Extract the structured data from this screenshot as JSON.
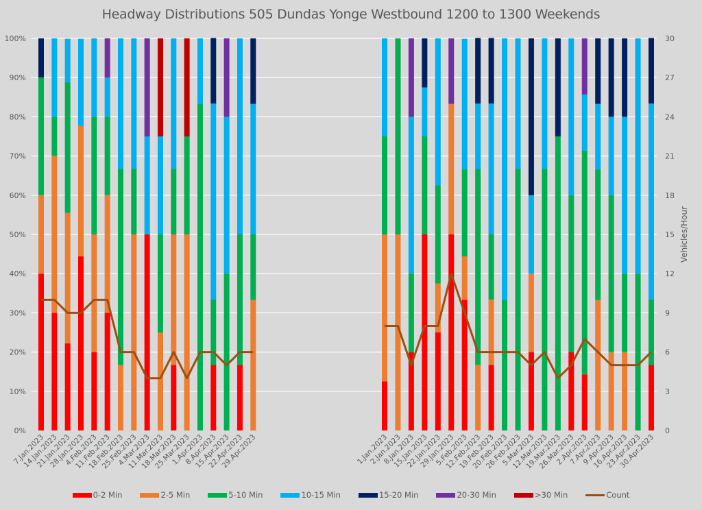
{
  "chart_data": {
    "type": "bar",
    "subtype": "stacked-percent-with-line",
    "title": "Headway Distributions 505 Dundas  Yonge Westbound 1200 to 1300 Weekends",
    "ylabel_left": "",
    "ylabel_right": "Vehicles/Hour",
    "ylim_left": [
      0,
      100
    ],
    "ylim_right": [
      0,
      30
    ],
    "yticks_left": [
      "0%",
      "10%",
      "20%",
      "30%",
      "40%",
      "50%",
      "60%",
      "70%",
      "80%",
      "90%",
      "100%"
    ],
    "yticks_right": [
      "0",
      "3",
      "6",
      "9",
      "12",
      "15",
      "18",
      "21",
      "24",
      "27",
      "30"
    ],
    "grid": true,
    "legend_position": "bottom",
    "series_names": [
      "0-2 Min",
      "2-5 Min",
      "5-10 Min",
      "10-15 Min",
      "15-20 Min",
      "20-30 Min",
      ">30 Min"
    ],
    "series_colors": [
      "#ff0000",
      "#ed7d31",
      "#00b050",
      "#00b0f0",
      "#002060",
      "#7030a0",
      "#c00000"
    ],
    "line_series": {
      "name": "Count",
      "color": "#9c4f12"
    },
    "groups": [
      {
        "name": "left",
        "categories": [
          "7.Jan.2023",
          "14.Jan.2023",
          "21.Jan.2023",
          "28.Jan.2023",
          "4.Feb.2023",
          "11.Feb.2023",
          "18.Feb.2023",
          "25.Feb.2023",
          "4.Mar.2023",
          "11.Mar.2023",
          "18.Mar.2023",
          "25.Mar.2023",
          "1.Apr.2023",
          "8.Apr.2023",
          "15.Apr.2023",
          "22.Apr.2023",
          "29.Apr.2023"
        ],
        "percent": [
          [
            40,
            20,
            30,
            0,
            10,
            0,
            0
          ],
          [
            30,
            40,
            10,
            20,
            0,
            0,
            0
          ],
          [
            22.2,
            33.3,
            33.3,
            11.1,
            0,
            0,
            0
          ],
          [
            44.4,
            33.3,
            0,
            22.2,
            0,
            0,
            0
          ],
          [
            20,
            30,
            30,
            20,
            0,
            0,
            0
          ],
          [
            30,
            30,
            20,
            10,
            0,
            10,
            0
          ],
          [
            0,
            16.7,
            50,
            33.3,
            0,
            0,
            0
          ],
          [
            0,
            50,
            16.7,
            33.3,
            0,
            0,
            0
          ],
          [
            50,
            0,
            0,
            25,
            0,
            25,
            0
          ],
          [
            0,
            25,
            25,
            25,
            0,
            0,
            25
          ],
          [
            16.7,
            33.3,
            16.7,
            33.3,
            0,
            0,
            0
          ],
          [
            0,
            50,
            25,
            0,
            0,
            0,
            25
          ],
          [
            0,
            0,
            83.3,
            16.7,
            0,
            0,
            0
          ],
          [
            16.7,
            0,
            16.7,
            50,
            16.7,
            0,
            0
          ],
          [
            0,
            0,
            40,
            40,
            0,
            20,
            0
          ],
          [
            16.7,
            0,
            33.3,
            50,
            0,
            0,
            0
          ],
          [
            0,
            33.3,
            16.7,
            33.3,
            16.7,
            0,
            0
          ]
        ],
        "count": [
          10,
          10,
          9,
          9,
          10,
          10,
          6,
          6,
          4,
          4,
          6,
          4,
          6,
          6,
          5,
          6,
          6
        ]
      },
      {
        "name": "right",
        "categories": [
          "1.Jan.2023",
          "2.Jan.2023",
          "8.Jan.2023",
          "15.Jan.2023",
          "22.Jan.2023",
          "29.Jan.2023",
          "5.Feb.2023",
          "12.Feb.2023",
          "19.Feb.2023",
          "20.Feb.2023",
          "26.Feb.2023",
          "5.Mar.2023",
          "12.Mar.2023",
          "19.Mar.2023",
          "26.Mar.2023",
          "2.Apr.2023",
          "7.Apr.2023",
          "9.Apr.2023",
          "16.Apr.2023",
          "23.Apr.2023",
          "30.Apr.2023"
        ],
        "percent": [
          [
            12.5,
            37.5,
            25,
            25,
            0,
            0,
            0
          ],
          [
            0,
            50,
            50,
            0,
            0,
            0,
            0
          ],
          [
            20,
            0,
            20,
            40,
            0,
            20,
            0
          ],
          [
            50,
            0,
            25,
            12.5,
            12.5,
            0,
            0
          ],
          [
            25,
            12.5,
            25,
            37.5,
            0,
            0,
            0
          ],
          [
            50,
            33.3,
            0,
            0,
            0,
            16.7,
            0
          ],
          [
            33.3,
            11.1,
            22.2,
            33.3,
            0,
            0,
            0
          ],
          [
            0,
            16.7,
            50,
            16.7,
            16.7,
            0,
            0
          ],
          [
            16.7,
            16.7,
            16.7,
            33.3,
            16.7,
            0,
            0
          ],
          [
            0,
            0,
            33.3,
            66.7,
            0,
            0,
            0
          ],
          [
            0,
            0,
            66.7,
            33.3,
            0,
            0,
            0
          ],
          [
            20,
            20,
            0,
            20,
            40,
            0,
            0
          ],
          [
            0,
            0,
            66.7,
            33.3,
            0,
            0,
            0
          ],
          [
            0,
            0,
            75,
            0,
            25,
            0,
            0
          ],
          [
            20,
            0,
            40,
            40,
            0,
            0,
            0
          ],
          [
            14.3,
            0,
            57.1,
            14.3,
            0,
            14.3,
            0
          ],
          [
            0,
            33.3,
            33.3,
            16.7,
            16.7,
            0,
            0
          ],
          [
            0,
            20,
            40,
            20,
            20,
            0,
            0
          ],
          [
            0,
            20,
            20,
            40,
            20,
            0,
            0
          ],
          [
            0,
            0,
            40,
            60,
            0,
            0,
            0
          ],
          [
            16.7,
            0,
            16.7,
            50,
            16.7,
            0,
            0
          ]
        ],
        "count": [
          8,
          8,
          5,
          8,
          8,
          12,
          9,
          6,
          6,
          6,
          6,
          5,
          6,
          4,
          5,
          7,
          6,
          5,
          5,
          5,
          6
        ]
      }
    ]
  }
}
